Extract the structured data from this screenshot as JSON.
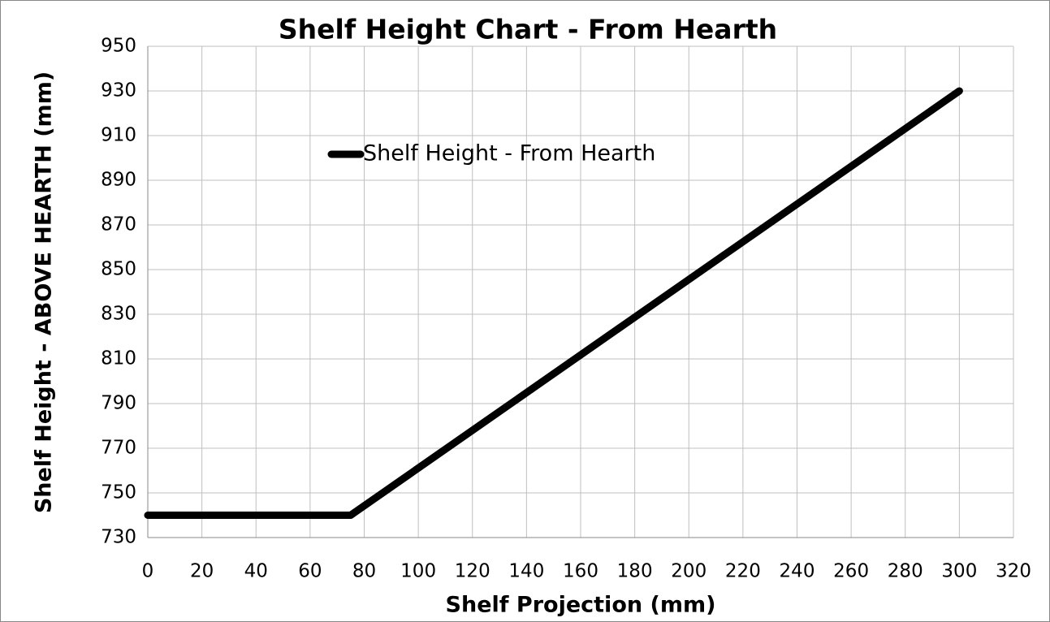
{
  "chart_data": {
    "type": "line",
    "title": "Shelf Height Chart - From Hearth",
    "x_label": "Shelf Projection (mm)",
    "y_label": "Shelf Height - ABOVE HEARTH (mm)",
    "x": [
      0,
      75,
      300
    ],
    "series": [
      {
        "name": "Shelf Height - From Hearth",
        "color": "#000000",
        "values": [
          740,
          740,
          930
        ]
      }
    ],
    "xlim": [
      0,
      320
    ],
    "xticks": [
      0,
      20,
      40,
      60,
      80,
      100,
      120,
      140,
      160,
      180,
      200,
      220,
      240,
      260,
      280,
      300,
      320
    ],
    "ylim": [
      730,
      950
    ],
    "yticks": [
      730,
      750,
      770,
      790,
      810,
      830,
      850,
      870,
      890,
      910,
      930,
      950
    ],
    "grid": true,
    "legend": "top"
  }
}
